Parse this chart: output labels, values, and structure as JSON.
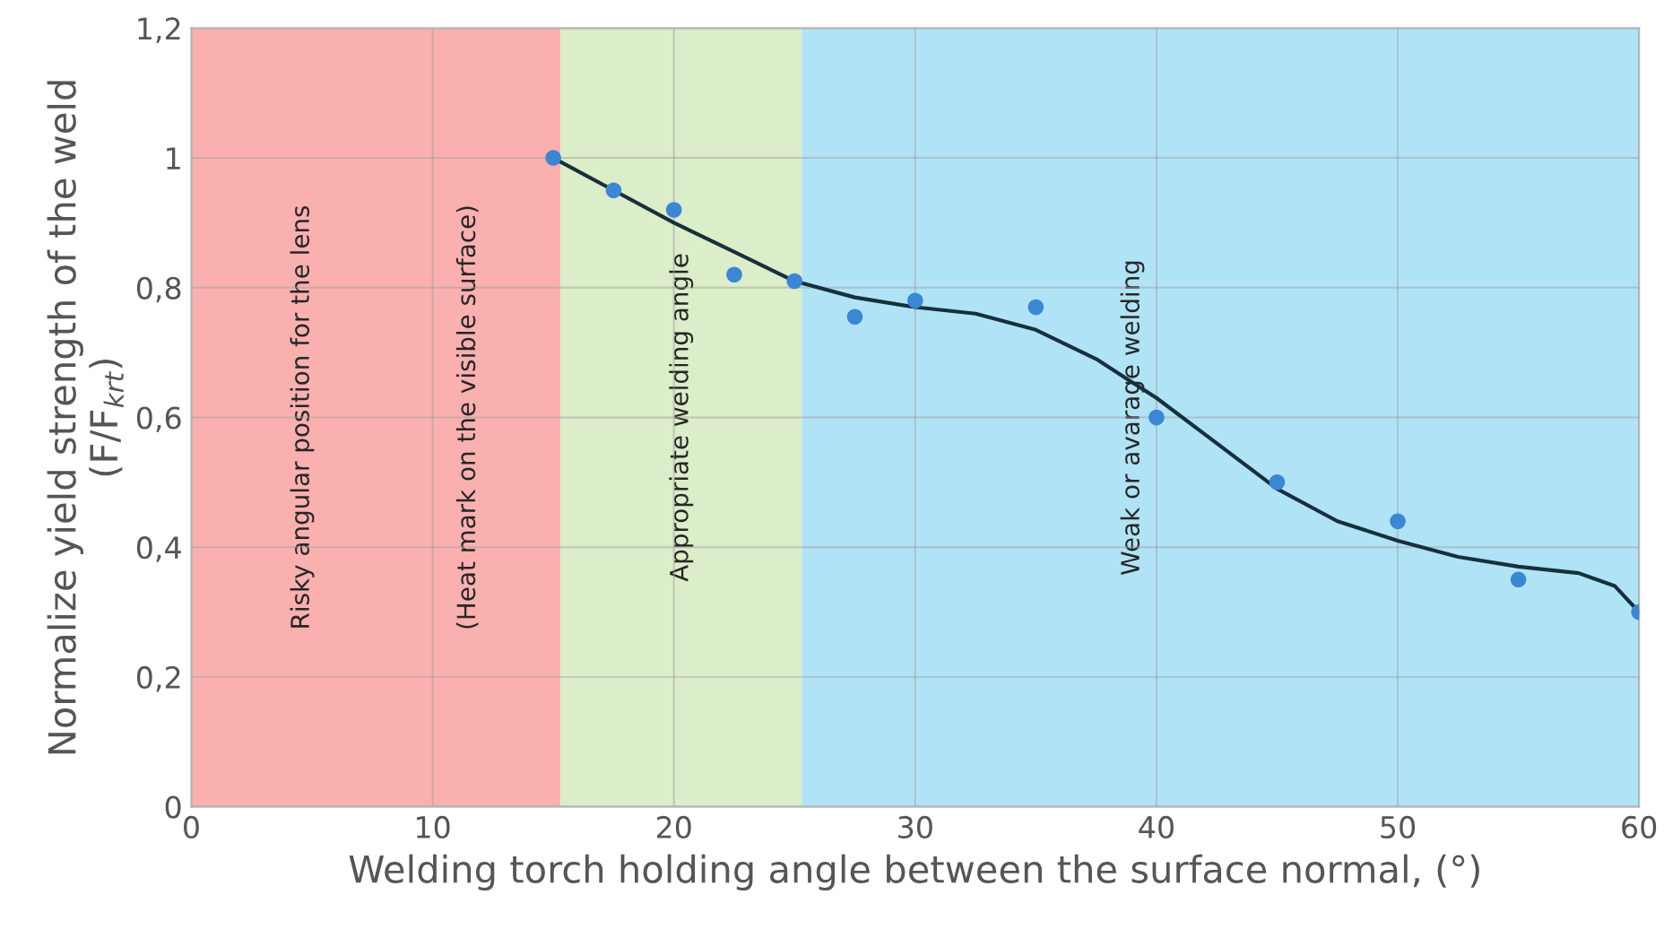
{
  "chart_data": {
    "type": "scatter",
    "xlabel": "Welding torch holding angle between the surface normal, (°)",
    "ylabel": "Normalize yield strength of the weld\n(F/F$_{krt}$)",
    "xlim": [
      0,
      60
    ],
    "xticks": [
      0,
      10,
      20,
      30,
      40,
      50,
      60
    ],
    "ylim": [
      0,
      1.2
    ],
    "yticks": [
      0,
      {
        "value": 0.2,
        "label": "0,2"
      },
      {
        "value": 0.4,
        "label": "0,4"
      },
      {
        "value": 0.6,
        "label": "0,6"
      },
      {
        "value": 0.8,
        "label": "0,8"
      },
      1,
      {
        "value": 1.2,
        "label": "1,2"
      }
    ],
    "grid": true,
    "x": [
      15,
      17.5,
      20,
      22.5,
      25,
      27.5,
      30,
      35,
      40,
      45,
      50,
      55,
      60
    ],
    "series": [
      {
        "marker": "circle",
        "color": "#3b87d4",
        "values": [
          1.0,
          0.95,
          0.92,
          0.82,
          0.81,
          0.755,
          0.78,
          0.77,
          0.6,
          0.5,
          0.44,
          0.35,
          0.3
        ]
      },
      {
        "type": "line",
        "marker": "none",
        "color": "#17303d",
        "line_style": "solid",
        "x": [
          15,
          17.5,
          20,
          22.5,
          25,
          27.5,
          30,
          32.5,
          35,
          37.5,
          40,
          42.5,
          45,
          47.5,
          50,
          52.5,
          55,
          57.5,
          59,
          60
        ],
        "values": [
          1.0,
          0.95,
          0.9,
          0.855,
          0.81,
          0.785,
          0.77,
          0.76,
          0.735,
          0.69,
          0.63,
          0.56,
          0.49,
          0.44,
          0.41,
          0.385,
          0.37,
          0.36,
          0.34,
          0.3
        ]
      }
    ],
    "bands": [
      {
        "axis": "x",
        "from": 0,
        "to": 15.3,
        "label": "Risky angular position for the lens",
        "color": "#fbb0b0"
      },
      {
        "axis": "x",
        "from": 15.3,
        "to": 25.3,
        "label": "Appropriate welding angle",
        "color": "#dcedc9"
      },
      {
        "axis": "x",
        "from": 25.3,
        "to": 60,
        "label": "Weak or avarage welding",
        "color": "#b1e3f6"
      }
    ],
    "annotations": [
      "(Heat mark on the visible surface)"
    ]
  }
}
